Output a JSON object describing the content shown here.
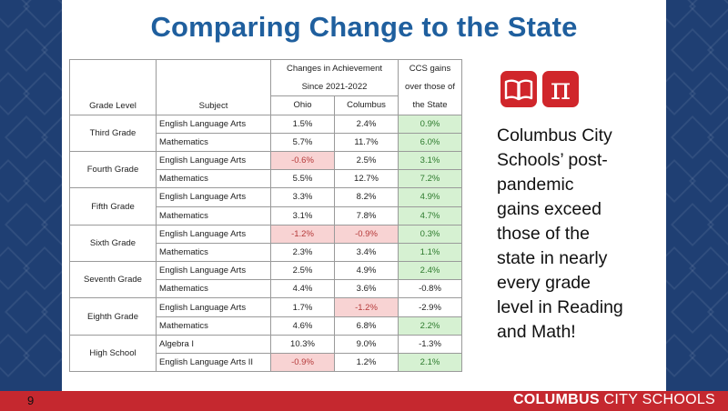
{
  "title": "Comparing Change to the State",
  "table": {
    "headers": {
      "grade_level": "Grade Level",
      "subject": "Subject",
      "changes_line1": "Changes in Achievement",
      "changes_line2": "Since 2021-2022",
      "ccs_line1": "CCS gains",
      "ccs_line2": "over those of",
      "ccs_line3": "the State",
      "ohio": "Ohio",
      "columbus": "Columbus"
    },
    "groups": [
      {
        "grade": "Third Grade",
        "rows": [
          {
            "subject": "English Language Arts",
            "ohio": "1.5%",
            "columbus": "2.4%",
            "gain": "0.9%",
            "ohio_neg": false,
            "col_neg": false,
            "gain_pos": true
          },
          {
            "subject": "Mathematics",
            "ohio": "5.7%",
            "columbus": "11.7%",
            "gain": "6.0%",
            "ohio_neg": false,
            "col_neg": false,
            "gain_pos": true
          }
        ]
      },
      {
        "grade": "Fourth Grade",
        "rows": [
          {
            "subject": "English Language Arts",
            "ohio": "-0.6%",
            "columbus": "2.5%",
            "gain": "3.1%",
            "ohio_neg": true,
            "col_neg": false,
            "gain_pos": true
          },
          {
            "subject": "Mathematics",
            "ohio": "5.5%",
            "columbus": "12.7%",
            "gain": "7.2%",
            "ohio_neg": false,
            "col_neg": false,
            "gain_pos": true
          }
        ]
      },
      {
        "grade": "Fifth Grade",
        "rows": [
          {
            "subject": "English Language Arts",
            "ohio": "3.3%",
            "columbus": "8.2%",
            "gain": "4.9%",
            "ohio_neg": false,
            "col_neg": false,
            "gain_pos": true
          },
          {
            "subject": "Mathematics",
            "ohio": "3.1%",
            "columbus": "7.8%",
            "gain": "4.7%",
            "ohio_neg": false,
            "col_neg": false,
            "gain_pos": true
          }
        ]
      },
      {
        "grade": "Sixth Grade",
        "rows": [
          {
            "subject": "English Language Arts",
            "ohio": "-1.2%",
            "columbus": "-0.9%",
            "gain": "0.3%",
            "ohio_neg": true,
            "col_neg": true,
            "gain_pos": true
          },
          {
            "subject": "Mathematics",
            "ohio": "2.3%",
            "columbus": "3.4%",
            "gain": "1.1%",
            "ohio_neg": false,
            "col_neg": false,
            "gain_pos": true
          }
        ]
      },
      {
        "grade": "Seventh Grade",
        "rows": [
          {
            "subject": "English Language Arts",
            "ohio": "2.5%",
            "columbus": "4.9%",
            "gain": "2.4%",
            "ohio_neg": false,
            "col_neg": false,
            "gain_pos": true
          },
          {
            "subject": "Mathematics",
            "ohio": "4.4%",
            "columbus": "3.6%",
            "gain": "-0.8%",
            "ohio_neg": false,
            "col_neg": false,
            "gain_pos": false
          }
        ]
      },
      {
        "grade": "Eighth Grade",
        "rows": [
          {
            "subject": "English Language Arts",
            "ohio": "1.7%",
            "columbus": "-1.2%",
            "gain": "-2.9%",
            "ohio_neg": false,
            "col_neg": true,
            "gain_pos": false
          },
          {
            "subject": "Mathematics",
            "ohio": "4.6%",
            "columbus": "6.8%",
            "gain": "2.2%",
            "ohio_neg": false,
            "col_neg": false,
            "gain_pos": true
          }
        ]
      },
      {
        "grade": "High School",
        "rows": [
          {
            "subject": "Algebra I",
            "ohio": "10.3%",
            "columbus": "9.0%",
            "gain": "-1.3%",
            "ohio_neg": false,
            "col_neg": false,
            "gain_pos": false
          },
          {
            "subject": "English Language Arts II",
            "ohio": "-0.9%",
            "columbus": "1.2%",
            "gain": "2.1%",
            "ohio_neg": true,
            "col_neg": false,
            "gain_pos": true
          }
        ]
      }
    ]
  },
  "icons": [
    "open-book-icon",
    "pi-symbol-icon"
  ],
  "pi_glyph": "π",
  "blurb_lines": [
    "Columbus City",
    "Schools’ post-",
    "pandemic",
    "gains exceed",
    "those of the",
    "state in nearly",
    "every grade",
    "level in Reading",
    "and Math!"
  ],
  "footer": {
    "page_number": "9",
    "brand_bold": "COLUMBUS",
    "brand_rest": " CITY SCHOOLS"
  },
  "colors": {
    "title": "#1f5f9e",
    "side_panel": "#1f3f73",
    "footer": "#c5282f",
    "icon_bg": "#d0262b",
    "gain_positive_bg": "#d6f1d2",
    "negative_bg": "#f8d3d3"
  }
}
